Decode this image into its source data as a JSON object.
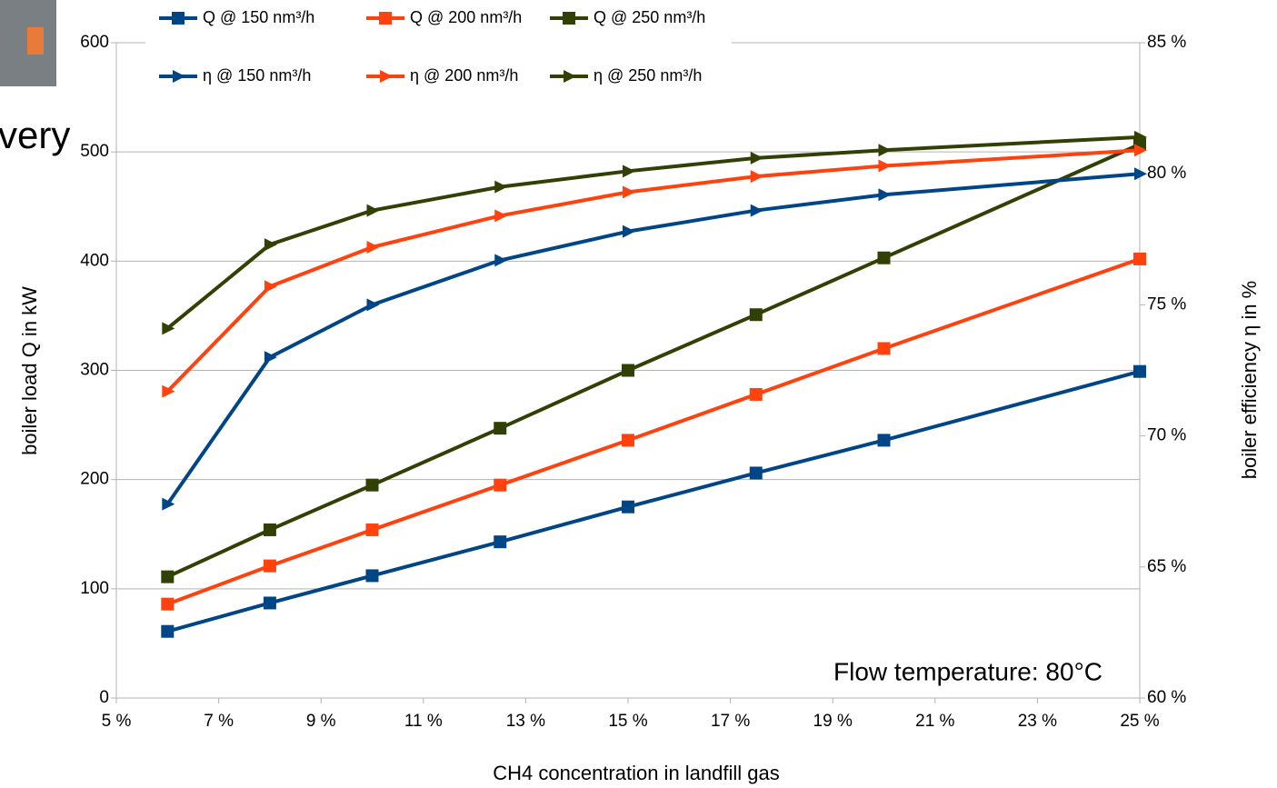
{
  "fragment_text": "very",
  "chart_data": {
    "type": "line",
    "x_label": "CH4 concentration in landfill gas",
    "y_label": "boiler load Q in kW",
    "y2_label": "boiler efficiency η in %",
    "annotation": "Flow temperature: 80°C",
    "x": [
      6,
      8,
      10,
      12.5,
      15,
      17.5,
      20,
      25
    ],
    "xlim": [
      5,
      25
    ],
    "xticks": [
      {
        "value": 5,
        "label": "5 %"
      },
      {
        "value": 7,
        "label": "7 %"
      },
      {
        "value": 9,
        "label": "9 %"
      },
      {
        "value": 11,
        "label": "11 %"
      },
      {
        "value": 13,
        "label": "13 %"
      },
      {
        "value": 15,
        "label": "15 %"
      },
      {
        "value": 17,
        "label": "17 %"
      },
      {
        "value": 19,
        "label": "19 %"
      },
      {
        "value": 21,
        "label": "21 %"
      },
      {
        "value": 23,
        "label": "23 %"
      },
      {
        "value": 25,
        "label": "25 %"
      }
    ],
    "ylim": [
      0,
      600
    ],
    "yticks": [
      0,
      100,
      200,
      300,
      400,
      500,
      600
    ],
    "y2lim": [
      60,
      85
    ],
    "y2ticks": [
      {
        "value": 60,
        "label": "60 %"
      },
      {
        "value": 65,
        "label": "65 %"
      },
      {
        "value": 70,
        "label": "70 %"
      },
      {
        "value": 75,
        "label": "75 %"
      },
      {
        "value": 80,
        "label": "80 %"
      },
      {
        "value": 85,
        "label": "85 %"
      }
    ],
    "grid": true,
    "series": [
      {
        "name": "Q @ 150 nm³/h",
        "color": "#004586",
        "marker": "square",
        "values": [
          61,
          87,
          112,
          143,
          175,
          206,
          236,
          299
        ]
      },
      {
        "name": "Q @ 200 nm³/h",
        "color": "#ff420e",
        "marker": "square",
        "values": [
          86,
          121,
          154,
          195,
          236,
          278,
          320,
          402
        ]
      },
      {
        "name": "Q @ 250 nm³/h",
        "color": "#314004",
        "marker": "square",
        "values": [
          111,
          154,
          195,
          247,
          300,
          351,
          403,
          507
        ]
      },
      {
        "name": "η @ 150 nm³/h",
        "color": "#004586",
        "marker": "triangle",
        "axis": "y2",
        "values": [
          67.4,
          73.0,
          75.0,
          76.7,
          77.8,
          78.6,
          79.2,
          80.0
        ]
      },
      {
        "name": "η @ 200 nm³/h",
        "color": "#ff420e",
        "marker": "triangle",
        "axis": "y2",
        "values": [
          71.7,
          75.7,
          77.2,
          78.4,
          79.3,
          79.9,
          80.3,
          80.9
        ]
      },
      {
        "name": "η @ 250 nm³/h",
        "color": "#314004",
        "marker": "triangle",
        "axis": "y2",
        "values": [
          74.1,
          77.3,
          78.6,
          79.5,
          80.1,
          80.6,
          80.9,
          81.4
        ]
      }
    ]
  }
}
